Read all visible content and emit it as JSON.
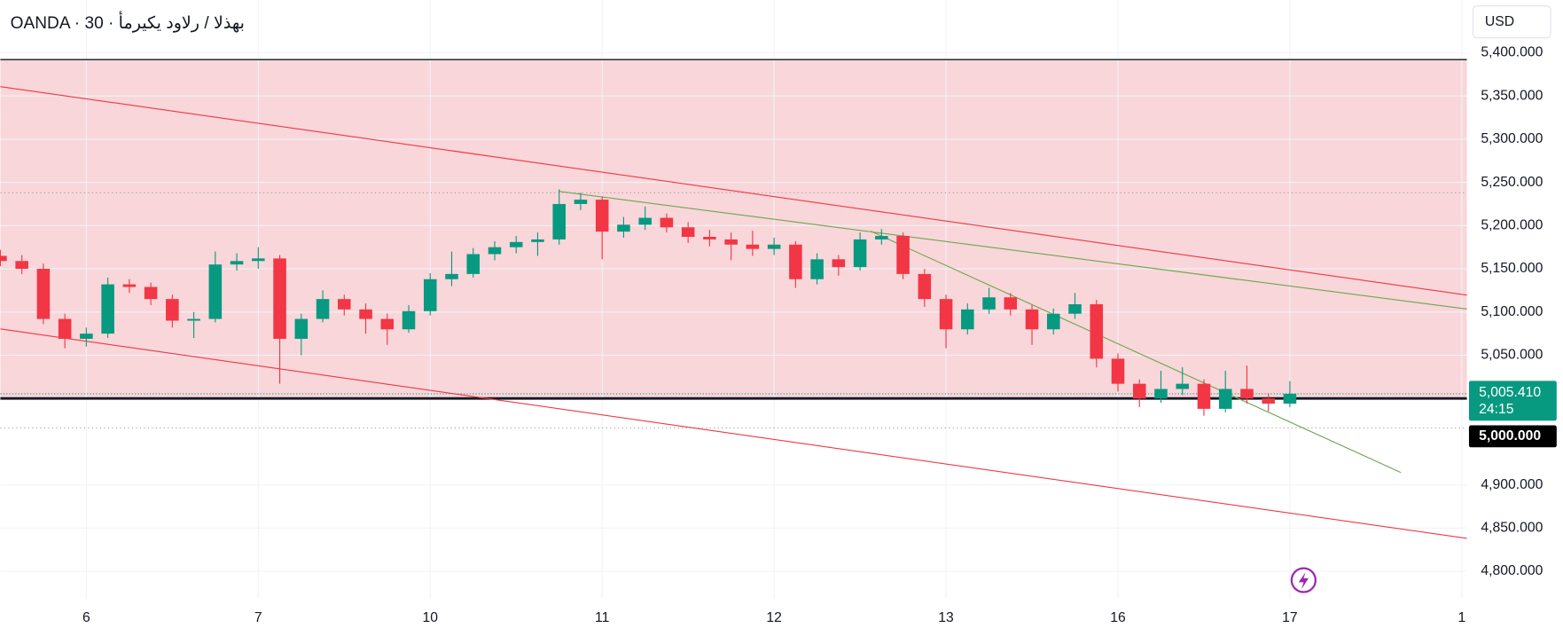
{
  "chart_data": {
    "type": "candlestick",
    "title": "OANDA · 30 · بهذلا / رلاود يكيرمأ",
    "currency": "USD",
    "xlim": [
      -0.5,
      8.03
    ],
    "xticks": [
      {
        "value": 0,
        "label": "6"
      },
      {
        "value": 1,
        "label": "7"
      },
      {
        "value": 2,
        "label": "10"
      },
      {
        "value": 3,
        "label": "11"
      },
      {
        "value": 4,
        "label": "12"
      },
      {
        "value": 5,
        "label": "13"
      },
      {
        "value": 6,
        "label": "16"
      },
      {
        "value": 7,
        "label": "17"
      },
      {
        "value": 8,
        "label": "1"
      }
    ],
    "ylim": [
      4769,
      5461
    ],
    "yticks": [
      {
        "value": 4800,
        "label": "4,800.000"
      },
      {
        "value": 4850,
        "label": "4,850.000"
      },
      {
        "value": 4900,
        "label": "4,900.000"
      },
      {
        "value": 5050,
        "label": "5,050.000"
      },
      {
        "value": 5100,
        "label": "5,100.000"
      },
      {
        "value": 5150,
        "label": "5,150.000"
      },
      {
        "value": 5200,
        "label": "5,200.000"
      },
      {
        "value": 5250,
        "label": "5,250.000"
      },
      {
        "value": 5300,
        "label": "5,300.000"
      },
      {
        "value": 5350,
        "label": "5,350.000"
      },
      {
        "value": 5400,
        "label": "5,400.000"
      }
    ],
    "grid": true,
    "up_color": "#089981",
    "down_color": "#f23645",
    "candles": {
      "x": [
        -0.5,
        -0.375,
        -0.25,
        -0.125,
        0,
        0.125,
        0.25,
        0.375,
        0.5,
        0.625,
        0.75,
        0.875,
        1,
        1.125,
        1.25,
        1.375,
        1.5,
        1.625,
        1.75,
        1.875,
        2,
        2.125,
        2.25,
        2.375,
        2.5,
        2.625,
        2.75,
        2.875,
        3,
        3.125,
        3.25,
        3.375,
        3.5,
        3.625,
        3.75,
        3.875,
        4,
        4.125,
        4.25,
        4.375,
        4.5,
        4.625,
        4.75,
        4.875,
        5,
        5.125,
        5.25,
        5.375,
        5.5,
        5.625,
        5.75,
        5.875,
        6,
        6.125,
        6.25,
        6.375,
        6.5,
        6.625,
        6.75,
        6.875,
        7
      ],
      "open": [
        5165,
        5159,
        5150,
        5092,
        5069,
        5075,
        5132,
        5129,
        5115,
        5090,
        5092,
        5155,
        5159,
        5162,
        5069,
        5092,
        5115,
        5103,
        5092,
        5080,
        5101,
        5138,
        5144,
        5167,
        5175,
        5181,
        5184,
        5225,
        5230,
        5193,
        5201,
        5209,
        5198,
        5187,
        5184,
        5178,
        5173,
        5178,
        5138,
        5161,
        5152,
        5184,
        5188,
        5144,
        5115,
        5080,
        5103,
        5117,
        5103,
        5080,
        5098,
        5109,
        5046,
        5017,
        5000,
        5011,
        5017,
        4988,
        5011,
        5000,
        4994
      ],
      "high": [
        5172,
        5166,
        5156,
        5098,
        5082,
        5140,
        5138,
        5134,
        5120,
        5100,
        5170,
        5168,
        5175,
        5166,
        5098,
        5125,
        5120,
        5110,
        5098,
        5108,
        5145,
        5170,
        5174,
        5182,
        5188,
        5192,
        5242,
        5238,
        5234,
        5210,
        5222,
        5214,
        5204,
        5195,
        5192,
        5194,
        5186,
        5182,
        5168,
        5166,
        5192,
        5196,
        5192,
        5150,
        5120,
        5110,
        5128,
        5122,
        5108,
        5104,
        5122,
        5114,
        5052,
        5022,
        5032,
        5036,
        5022,
        5032,
        5038,
        5006,
        5020
      ],
      "low": [
        5153,
        5144,
        5086,
        5058,
        5060,
        5070,
        5122,
        5108,
        5082,
        5070,
        5088,
        5148,
        5150,
        5017,
        5050,
        5088,
        5096,
        5075,
        5062,
        5076,
        5096,
        5130,
        5140,
        5160,
        5168,
        5165,
        5178,
        5218,
        5161,
        5186,
        5195,
        5192,
        5180,
        5176,
        5160,
        5165,
        5166,
        5128,
        5132,
        5142,
        5148,
        5178,
        5138,
        5106,
        5058,
        5074,
        5098,
        5096,
        5062,
        5074,
        5092,
        5036,
        5008,
        4990,
        4995,
        5004,
        4980,
        4984,
        4994,
        4985,
        4990
      ],
      "close": [
        5159,
        5150,
        5092,
        5069,
        5075,
        5132,
        5129,
        5115,
        5090,
        5092,
        5155,
        5159,
        5162,
        5069,
        5092,
        5115,
        5103,
        5092,
        5080,
        5101,
        5138,
        5144,
        5167,
        5175,
        5181,
        5184,
        5225,
        5230,
        5193,
        5201,
        5209,
        5198,
        5187,
        5184,
        5178,
        5173,
        5178,
        5138,
        5161,
        5152,
        5184,
        5188,
        5144,
        5115,
        5080,
        5103,
        5117,
        5103,
        5080,
        5098,
        5109,
        5046,
        5017,
        5000,
        5011,
        5017,
        4988,
        5011,
        5000,
        4994,
        5005.41
      ]
    },
    "zone": {
      "from": 5000,
      "to": 5392,
      "color": "#f9d6d9"
    },
    "levels": [
      5238,
      4966
    ],
    "trend_lines": [
      {
        "color": "#f23645",
        "x": [
          -0.5,
          8.03
        ],
        "y": [
          5360.8,
          5119.6
        ]
      },
      {
        "color": "#f23645",
        "x": [
          -0.5,
          8.03
        ],
        "y": [
          5080.4,
          4838.1
        ]
      },
      {
        "color": "#6aa84f",
        "x": [
          2.748,
          8.03
        ],
        "y": [
          5239.6,
          5103.5
        ]
      },
      {
        "color": "#6aa84f",
        "x": [
          4.562,
          7.646
        ],
        "y": [
          5193.5,
          4914.3
        ]
      }
    ],
    "last_price": {
      "value": 5005.41,
      "label": "5,005.410"
    },
    "countdown": "24:15",
    "price_line": {
      "value": 5000,
      "label": "5,000.000"
    }
  }
}
